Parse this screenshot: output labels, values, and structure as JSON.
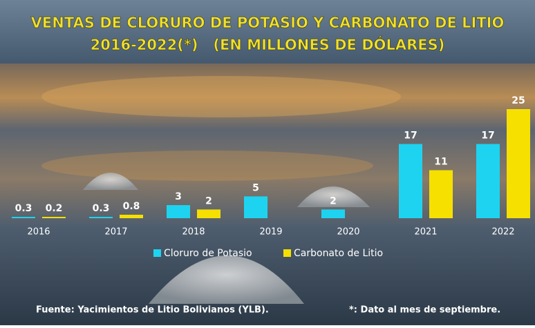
{
  "chart_data": {
    "type": "bar",
    "title": "VENTAS DE CLORURO DE POTASIO Y CARBONATO DE LITIO",
    "subtitle": "2016-2022(*)   (EN MILLONES DE DÓLARES)",
    "categories": [
      "2016",
      "2017",
      "2018",
      "2019",
      "2020",
      "2021",
      "2022"
    ],
    "series": [
      {
        "name": "Cloruro de Potasio",
        "color": "#1ed3f0",
        "values": [
          0.3,
          0.3,
          3,
          5,
          2,
          17,
          17
        ]
      },
      {
        "name": "Carbonato de Litio",
        "color": "#f5e000",
        "values": [
          0.2,
          0.8,
          2,
          null,
          null,
          11,
          25
        ]
      }
    ],
    "source": "Fuente: Yacimientos de Litio Bolivianos (YLB).",
    "note": "*: Dato al mes de septiembre."
  }
}
